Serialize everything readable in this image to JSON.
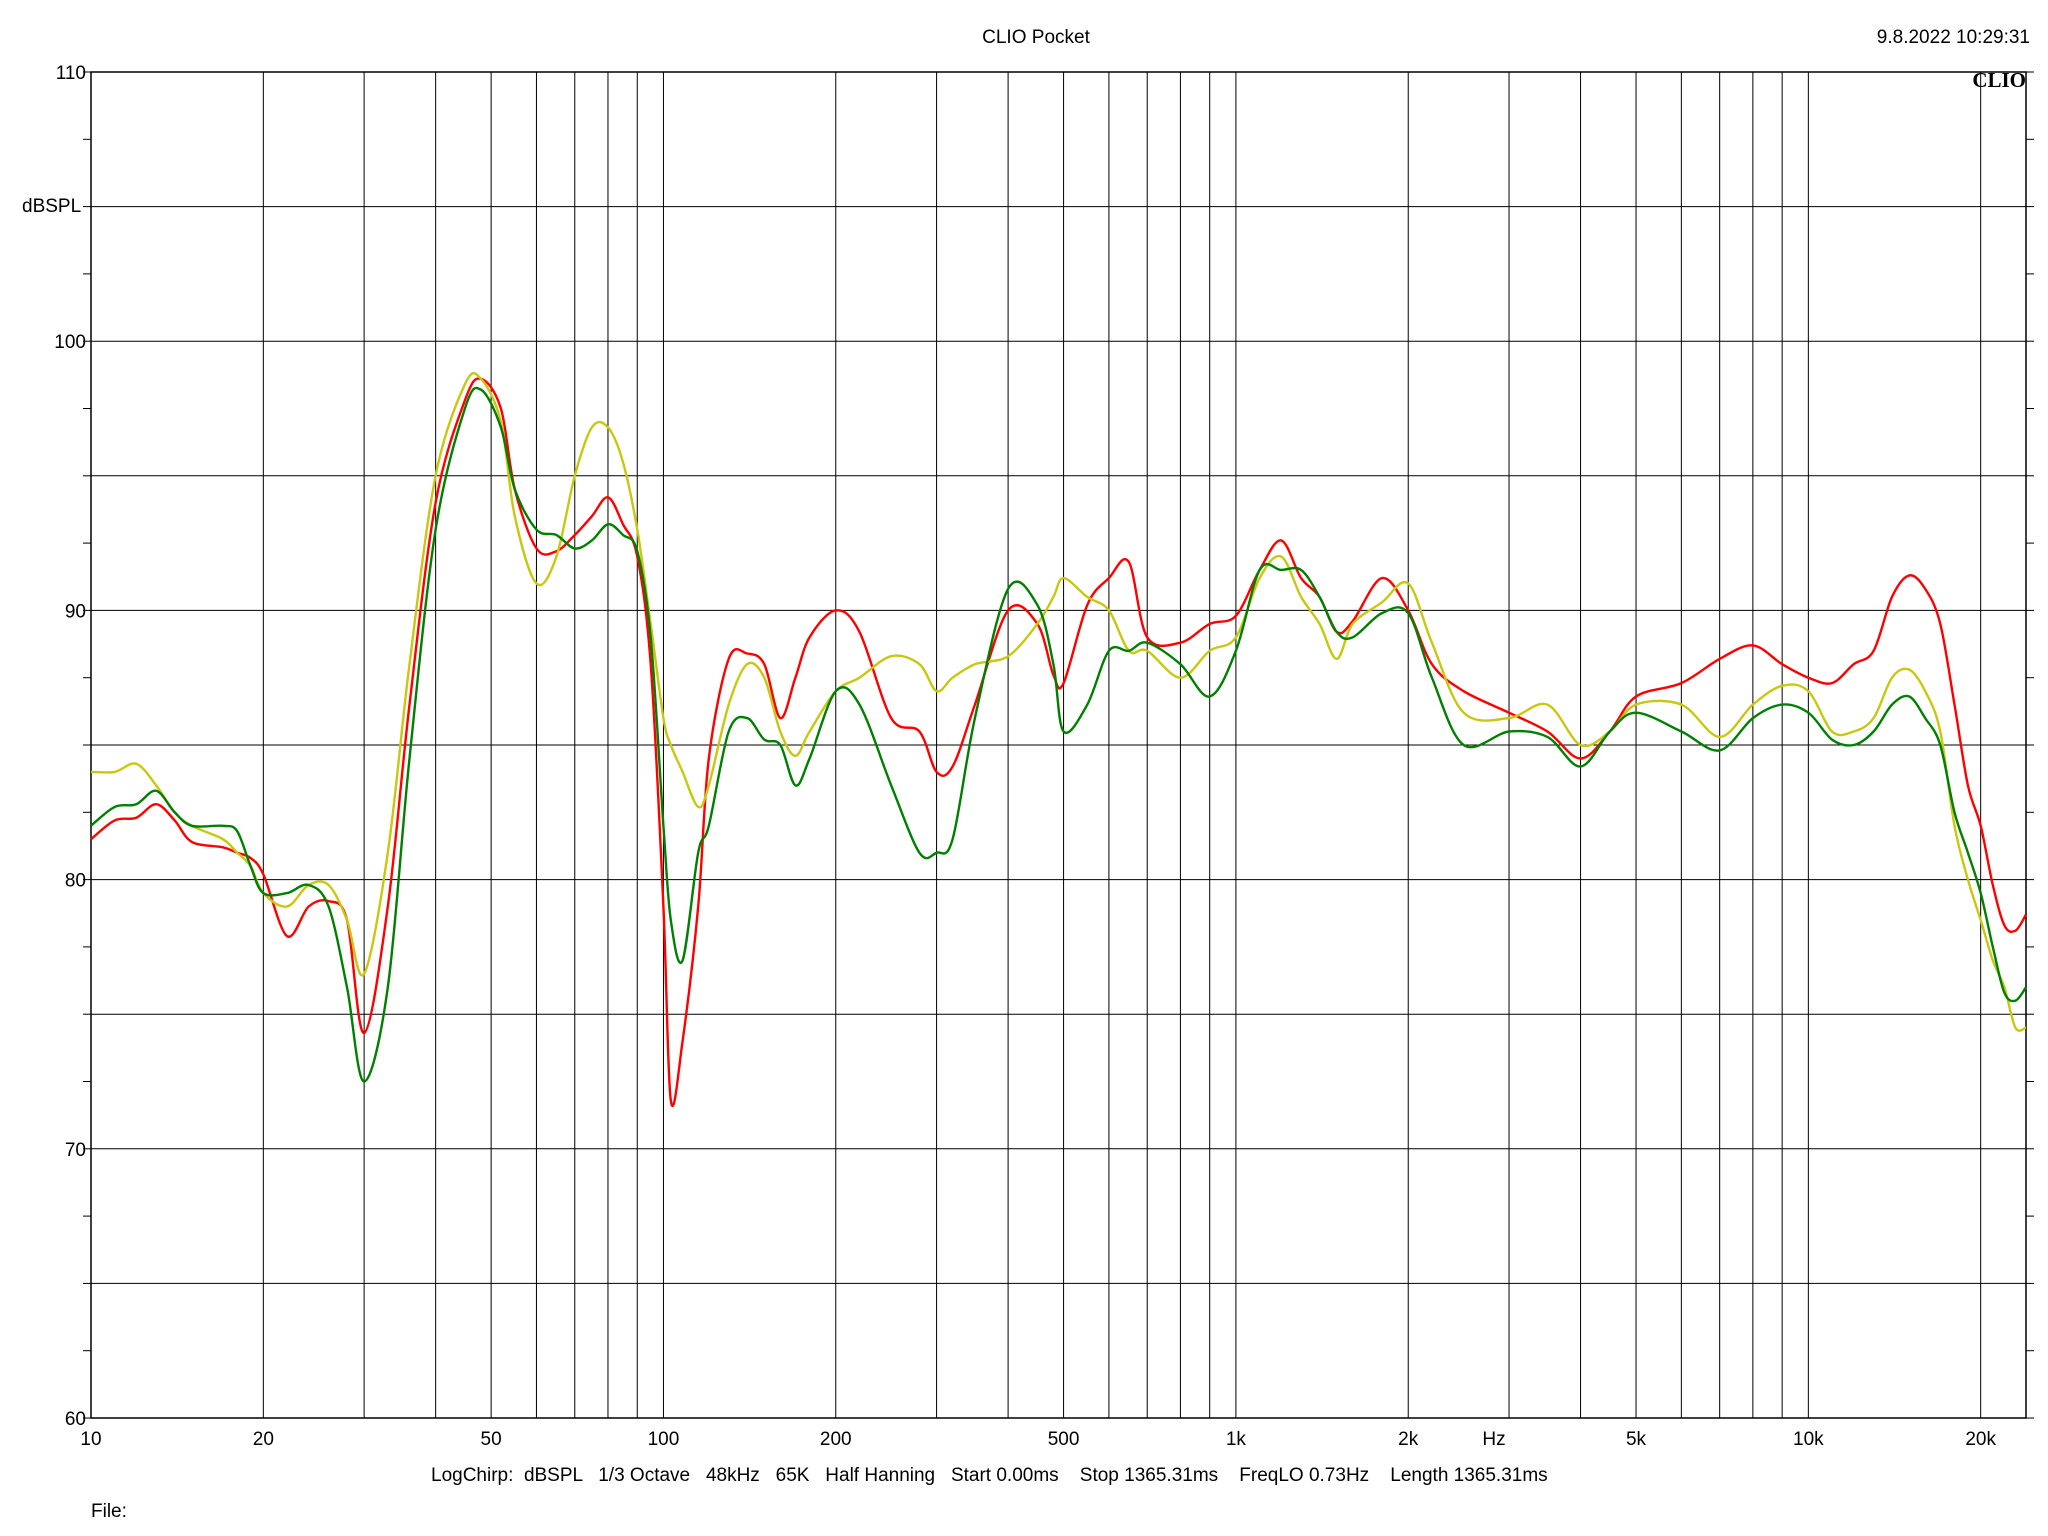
{
  "header": {
    "title": "CLIO Pocket",
    "timestamp": "9.8.2022 10:29:31",
    "logo": "CLIO"
  },
  "footer": {
    "settings": "LogChirp:  dBSPL   1/3 Octave   48kHz   65K   Half Hanning   Start 0.00ms    Stop 1365.31ms    FreqLO 0.73Hz    Length 1365.31ms",
    "file_label": "File:"
  },
  "chart_data": {
    "type": "line",
    "title": "CLIO Pocket",
    "xlabel": "Hz",
    "ylabel": "dBSPL",
    "x_scale": "log",
    "xlim": [
      10,
      24000
    ],
    "ylim": [
      60,
      110
    ],
    "grid": true,
    "x_ticks": [
      {
        "value": 10,
        "label": "10"
      },
      {
        "value": 20,
        "label": "20"
      },
      {
        "value": 50,
        "label": "50"
      },
      {
        "value": 100,
        "label": "100"
      },
      {
        "value": 200,
        "label": "200"
      },
      {
        "value": 500,
        "label": "500"
      },
      {
        "value": 1000,
        "label": "1k"
      },
      {
        "value": 2000,
        "label": "2k"
      },
      {
        "value": 5000,
        "label": "5k"
      },
      {
        "value": 10000,
        "label": "10k"
      },
      {
        "value": 20000,
        "label": "20k"
      }
    ],
    "y_ticks": [
      {
        "value": 60,
        "label": "60"
      },
      {
        "value": 70,
        "label": "70"
      },
      {
        "value": 80,
        "label": "80"
      },
      {
        "value": 90,
        "label": "90"
      },
      {
        "value": 100,
        "label": "100"
      },
      {
        "value": 110,
        "label": "110"
      }
    ],
    "series": [
      {
        "color": "#ff0000",
        "x": [
          10,
          11,
          12,
          13,
          14,
          15,
          17,
          18,
          19,
          20,
          22,
          24,
          26,
          28,
          30,
          33,
          36,
          40,
          45,
          48,
          52,
          55,
          60,
          65,
          70,
          75,
          80,
          85,
          90,
          95,
          100,
          103,
          108,
          115,
          120,
          130,
          140,
          150,
          160,
          170,
          180,
          200,
          220,
          250,
          280,
          300,
          320,
          350,
          400,
          450,
          480,
          500,
          550,
          600,
          650,
          700,
          800,
          900,
          1000,
          1100,
          1200,
          1300,
          1400,
          1500,
          1600,
          1800,
          2000,
          2200,
          2500,
          3000,
          3500,
          4000,
          4500,
          5000,
          6000,
          7000,
          8000,
          9000,
          10000,
          11000,
          12000,
          13000,
          14000,
          15000,
          16000,
          17000,
          18000,
          19000,
          20000,
          21000,
          22000,
          23000,
          24000
        ],
        "y": [
          81.5,
          82.2,
          82.3,
          82.8,
          82.2,
          81.4,
          81.2,
          81.0,
          80.8,
          80.2,
          77.9,
          79.0,
          79.2,
          78.5,
          74.3,
          79.0,
          86.5,
          94.0,
          97.8,
          98.6,
          97.5,
          94.5,
          92.3,
          92.2,
          92.8,
          93.5,
          94.2,
          93.2,
          92.0,
          88.0,
          79.0,
          71.8,
          74.0,
          79.0,
          84.5,
          88.2,
          88.4,
          88.0,
          86.0,
          87.5,
          89.0,
          90.0,
          89.2,
          86.0,
          85.5,
          84.0,
          84.2,
          86.5,
          90.0,
          89.5,
          87.6,
          87.3,
          90.2,
          91.2,
          91.8,
          89.0,
          88.8,
          89.5,
          89.8,
          91.5,
          92.6,
          91.2,
          90.5,
          89.2,
          89.6,
          91.2,
          90.0,
          88.0,
          87.0,
          86.2,
          85.5,
          84.5,
          85.5,
          86.8,
          87.3,
          88.2,
          88.7,
          88.0,
          87.5,
          87.3,
          88.0,
          88.5,
          90.5,
          91.3,
          90.8,
          89.5,
          86.5,
          83.5,
          82.0,
          79.8,
          78.3,
          78.1,
          78.7
        ]
      },
      {
        "color": "#c8c810",
        "x": [
          10,
          11,
          12,
          13,
          14,
          15,
          17,
          18,
          19,
          20,
          22,
          24,
          26,
          28,
          30,
          33,
          36,
          40,
          45,
          48,
          52,
          55,
          60,
          65,
          70,
          75,
          80,
          85,
          90,
          95,
          100,
          103,
          108,
          115,
          120,
          130,
          140,
          150,
          160,
          170,
          180,
          200,
          220,
          250,
          280,
          300,
          320,
          350,
          400,
          450,
          480,
          500,
          550,
          600,
          650,
          700,
          800,
          900,
          1000,
          1100,
          1200,
          1300,
          1400,
          1500,
          1600,
          1800,
          2000,
          2200,
          2500,
          3000,
          3500,
          4000,
          4500,
          5000,
          6000,
          7000,
          8000,
          9000,
          10000,
          11000,
          12000,
          13000,
          14000,
          15000,
          16000,
          17000,
          18000,
          19000,
          20000,
          21000,
          22000,
          23000,
          24000
        ],
        "y": [
          84.0,
          84.0,
          84.3,
          83.5,
          82.5,
          82.0,
          81.5,
          81.0,
          80.5,
          79.5,
          79.0,
          79.8,
          79.8,
          78.5,
          76.5,
          81.0,
          88.0,
          95.0,
          98.4,
          98.6,
          97.0,
          93.5,
          91.0,
          92.0,
          95.0,
          96.8,
          96.8,
          95.5,
          93.0,
          89.5,
          86.0,
          85.0,
          84.0,
          82.7,
          83.5,
          86.5,
          88.0,
          87.5,
          85.5,
          84.6,
          85.5,
          87.0,
          87.5,
          88.3,
          88.0,
          87.0,
          87.5,
          88.0,
          88.3,
          89.5,
          90.5,
          91.2,
          90.5,
          90.0,
          88.5,
          88.5,
          87.5,
          88.5,
          89.0,
          91.2,
          92.0,
          90.5,
          89.5,
          88.2,
          89.5,
          90.3,
          91.0,
          88.8,
          86.2,
          86.0,
          86.5,
          85.0,
          85.5,
          86.5,
          86.5,
          85.3,
          86.5,
          87.2,
          87.0,
          85.5,
          85.5,
          86.0,
          87.5,
          87.8,
          87.0,
          85.5,
          82.0,
          80.0,
          78.5,
          77.0,
          76.0,
          74.5,
          74.5
        ]
      },
      {
        "color": "#008000",
        "x": [
          10,
          11,
          12,
          13,
          14,
          15,
          17,
          18,
          19,
          20,
          22,
          24,
          26,
          28,
          30,
          33,
          36,
          40,
          45,
          48,
          52,
          55,
          60,
          65,
          70,
          75,
          80,
          85,
          90,
          95,
          100,
          103,
          108,
          115,
          120,
          130,
          140,
          150,
          160,
          170,
          180,
          200,
          220,
          250,
          280,
          300,
          320,
          350,
          400,
          450,
          480,
          500,
          550,
          600,
          650,
          700,
          800,
          900,
          1000,
          1100,
          1200,
          1300,
          1400,
          1500,
          1600,
          1800,
          2000,
          2200,
          2500,
          3000,
          3500,
          4000,
          4500,
          5000,
          6000,
          7000,
          8000,
          9000,
          10000,
          11000,
          12000,
          13000,
          14000,
          15000,
          16000,
          17000,
          18000,
          19000,
          20000,
          21000,
          22000,
          23000,
          24000
        ],
        "y": [
          82.0,
          82.7,
          82.8,
          83.3,
          82.5,
          82.0,
          82.0,
          81.8,
          80.5,
          79.5,
          79.5,
          79.8,
          79.0,
          76.0,
          72.5,
          76.0,
          84.5,
          93.0,
          97.5,
          98.2,
          96.8,
          94.5,
          93.0,
          92.8,
          92.3,
          92.6,
          93.2,
          92.8,
          92.2,
          89.0,
          82.0,
          78.5,
          77.0,
          81.0,
          82.0,
          85.5,
          86.0,
          85.2,
          85.0,
          83.5,
          84.5,
          87.0,
          86.5,
          83.5,
          81.0,
          81.0,
          81.5,
          86.0,
          90.8,
          90.2,
          88.0,
          85.5,
          86.5,
          88.5,
          88.5,
          88.8,
          88.0,
          86.8,
          88.5,
          91.5,
          91.5,
          91.5,
          90.5,
          89.2,
          89.0,
          89.9,
          89.9,
          87.5,
          85.0,
          85.5,
          85.3,
          84.2,
          85.5,
          86.2,
          85.5,
          84.8,
          86.0,
          86.5,
          86.2,
          85.2,
          85.0,
          85.5,
          86.5,
          86.8,
          86.0,
          85.0,
          82.5,
          81.0,
          79.5,
          77.5,
          75.8,
          75.5,
          76.0
        ]
      }
    ]
  }
}
